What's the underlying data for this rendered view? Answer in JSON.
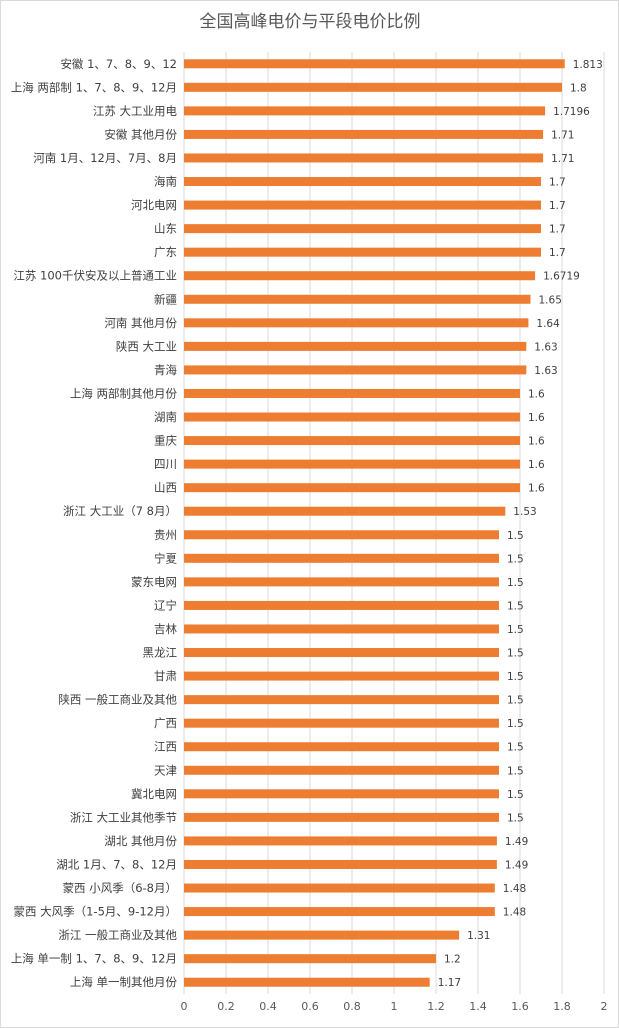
{
  "chart_data": {
    "type": "bar",
    "orientation": "horizontal",
    "title": "全国高峰电价与平段电价比例",
    "xlabel": "",
    "ylabel": "",
    "xlim": [
      0,
      2
    ],
    "xticks": [
      "0",
      "0.2",
      "0.4",
      "0.6",
      "0.8",
      "1",
      "1.2",
      "1.4",
      "1.6",
      "1.8",
      "2"
    ],
    "grid": "vertical",
    "legend": "none",
    "bar_color": "#ED7D31",
    "categories": [
      "安徽 1、7、8、9、12",
      "上海 两部制 1、7、8、9、12月",
      "江苏 大工业用电",
      "安徽 其他月份",
      "河南 1月、12月、7月、8月",
      "海南",
      "河北电网",
      "山东",
      "广东",
      "江苏 100千伏安及以上普通工业",
      "新疆",
      "河南 其他月份",
      "陕西 大工业",
      "青海",
      "上海 两部制其他月份",
      "湖南",
      "重庆",
      "四川",
      "山西",
      "浙江 大工业（7 8月）",
      "贵州",
      "宁夏",
      "蒙东电网",
      "辽宁",
      "吉林",
      "黑龙江",
      "甘肃",
      "陕西 一般工商业及其他",
      "广西",
      "江西",
      "天津",
      "冀北电网",
      "浙江 大工业其他季节",
      "湖北 其他月份",
      "湖北 1月、7、8、12月",
      "蒙西 小风季（6-8月）",
      "蒙西 大风季（1-5月、9-12月）",
      "浙江 一般工商业及其他",
      "上海 单一制 1、7、8、9、12月",
      "上海 单一制其他月份"
    ],
    "values": [
      1.813,
      1.8,
      1.7196,
      1.71,
      1.71,
      1.7,
      1.7,
      1.7,
      1.7,
      1.6719,
      1.65,
      1.64,
      1.63,
      1.63,
      1.6,
      1.6,
      1.6,
      1.6,
      1.6,
      1.53,
      1.5,
      1.5,
      1.5,
      1.5,
      1.5,
      1.5,
      1.5,
      1.5,
      1.5,
      1.5,
      1.5,
      1.5,
      1.5,
      1.49,
      1.49,
      1.48,
      1.48,
      1.31,
      1.2,
      1.17
    ],
    "value_labels": [
      "1.813",
      "1.8",
      "1.7196",
      "1.71",
      "1.71",
      "1.7",
      "1.7",
      "1.7",
      "1.7",
      "1.6719",
      "1.65",
      "1.64",
      "1.63",
      "1.63",
      "1.6",
      "1.6",
      "1.6",
      "1.6",
      "1.6",
      "1.53",
      "1.5",
      "1.5",
      "1.5",
      "1.5",
      "1.5",
      "1.5",
      "1.5",
      "1.5",
      "1.5",
      "1.5",
      "1.5",
      "1.5",
      "1.5",
      "1.49",
      "1.49",
      "1.48",
      "1.48",
      "1.31",
      "1.2",
      "1.17"
    ]
  }
}
